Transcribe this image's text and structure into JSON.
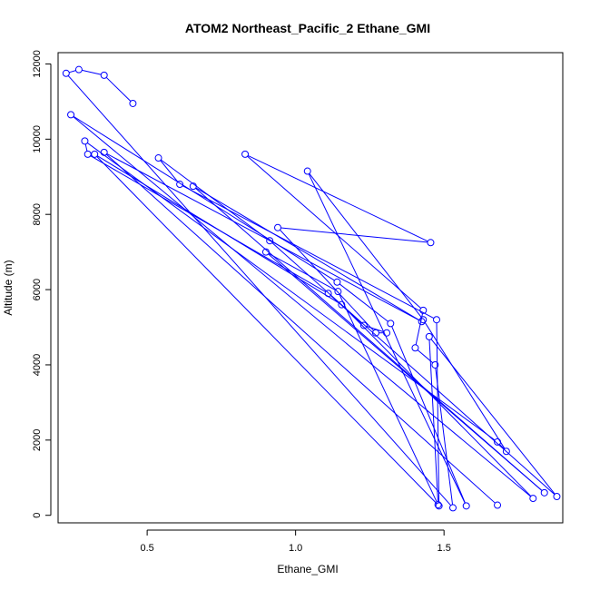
{
  "chart_data": {
    "type": "scatter",
    "title": "ATOM2 Northeast_Pacific_2 Ethane_GMI",
    "xlabel": "Ethane_GMI",
    "ylabel": "Altitude (m)",
    "xlim": [
      0.2,
      1.9
    ],
    "ylim": [
      -200,
      12300
    ],
    "xticks": [
      0.5,
      1.0,
      1.5
    ],
    "xtick_labels": [
      "0.5",
      "1.0",
      "1.5"
    ],
    "yticks": [
      0,
      2000,
      4000,
      6000,
      8000,
      10000,
      12000
    ],
    "ytick_labels": [
      "0",
      "2000",
      "4000",
      "6000",
      "8000",
      "10000",
      "12000"
    ],
    "grid": false,
    "series_color": "#0000ff",
    "marker": "open-circle",
    "connected": true,
    "series": [
      {
        "x": [
          0.452,
          0.355,
          0.27,
          0.227,
          1.53,
          1.47,
          1.403,
          1.43,
          0.83,
          1.455,
          0.94,
          1.27,
          1.307,
          1.23,
          1.11,
          0.3,
          0.29,
          1.68,
          1.71,
          1.43,
          1.04,
          1.575,
          1.32,
          1.14,
          0.243,
          1.8,
          1.155,
          0.323,
          1.483,
          1.475,
          0.61,
          0.538,
          0.913,
          1.88,
          1.45,
          1.48,
          1.143,
          0.9,
          1.838,
          0.655,
          1.425,
          0.355,
          1.68
        ],
        "y": [
          10950,
          11700,
          11850,
          11750,
          200,
          4000,
          4450,
          5450,
          9600,
          7250,
          7650,
          4850,
          4850,
          5050,
          5900,
          9600,
          9950,
          1950,
          1700,
          5200,
          9150,
          250,
          5100,
          6200,
          10650,
          450,
          5600,
          9600,
          250,
          5200,
          8800,
          9500,
          7300,
          500,
          4750,
          280,
          5950,
          7000,
          600,
          8750,
          5150,
          9650,
          270
        ]
      }
    ]
  }
}
